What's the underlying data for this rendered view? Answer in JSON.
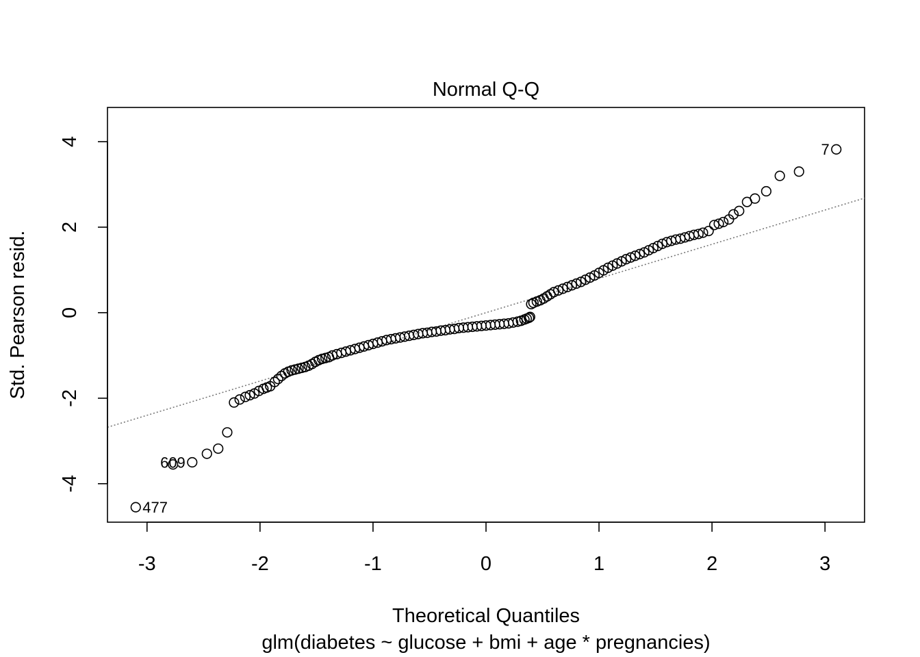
{
  "chart_data": {
    "type": "scatter",
    "title": "Normal Q-Q",
    "xlabel": "Theoretical Quantiles",
    "subtitle": "glm(diabetes ~ glucose + bmi + age * pregnancies)",
    "ylabel": "Std. Pearson resid.",
    "xlim": [
      -3.35,
      3.35
    ],
    "ylim": [
      -4.9,
      4.8
    ],
    "xticks": [
      -3,
      -2,
      -1,
      0,
      1,
      2,
      3
    ],
    "yticks": [
      -4,
      -2,
      0,
      2,
      4
    ],
    "grid": false,
    "reference_line": {
      "slope": 0.8,
      "intercept": 0.0,
      "style": "dotted",
      "color": "#777777"
    },
    "point_labels": [
      {
        "text": "477",
        "x": -3.1,
        "y": -4.55,
        "side": "right"
      },
      {
        "text": "609",
        "x": -2.6,
        "y": -3.5,
        "side": "left"
      },
      {
        "text": "7",
        "x": 3.1,
        "y": 3.82,
        "side": "left"
      }
    ],
    "series": [
      {
        "marker": "open-circle",
        "points": [
          [
            -3.1,
            -4.55
          ],
          [
            -2.77,
            -3.55
          ],
          [
            -2.6,
            -3.5
          ],
          [
            -2.47,
            -3.3
          ],
          [
            -2.37,
            -3.18
          ],
          [
            -2.29,
            -2.8
          ],
          [
            -2.23,
            -2.1
          ],
          [
            -2.18,
            -2.03
          ],
          [
            -2.13,
            -1.97
          ],
          [
            -2.09,
            -1.93
          ],
          [
            -2.05,
            -1.89
          ],
          [
            -2.01,
            -1.83
          ],
          [
            -1.97,
            -1.78
          ],
          [
            -1.94,
            -1.75
          ],
          [
            -1.91,
            -1.72
          ],
          [
            -1.87,
            -1.62
          ],
          [
            -1.84,
            -1.55
          ],
          [
            -1.81,
            -1.48
          ],
          [
            -1.78,
            -1.42
          ],
          [
            -1.75,
            -1.38
          ],
          [
            -1.72,
            -1.35
          ],
          [
            -1.69,
            -1.33
          ],
          [
            -1.66,
            -1.31
          ],
          [
            -1.63,
            -1.29
          ],
          [
            -1.6,
            -1.27
          ],
          [
            -1.57,
            -1.24
          ],
          [
            -1.54,
            -1.2
          ],
          [
            -1.51,
            -1.15
          ],
          [
            -1.48,
            -1.11
          ],
          [
            -1.45,
            -1.08
          ],
          [
            -1.42,
            -1.06
          ],
          [
            -1.39,
            -1.04
          ],
          [
            -1.36,
            -1.0
          ],
          [
            -1.32,
            -0.97
          ],
          [
            -1.28,
            -0.94
          ],
          [
            -1.24,
            -0.91
          ],
          [
            -1.2,
            -0.88
          ],
          [
            -1.16,
            -0.85
          ],
          [
            -1.12,
            -0.82
          ],
          [
            -1.08,
            -0.79
          ],
          [
            -1.04,
            -0.76
          ],
          [
            -1.0,
            -0.73
          ],
          [
            -0.96,
            -0.7
          ],
          [
            -0.92,
            -0.67
          ],
          [
            -0.88,
            -0.64
          ],
          [
            -0.84,
            -0.62
          ],
          [
            -0.8,
            -0.6
          ],
          [
            -0.76,
            -0.58
          ],
          [
            -0.72,
            -0.56
          ],
          [
            -0.68,
            -0.54
          ],
          [
            -0.64,
            -0.52
          ],
          [
            -0.6,
            -0.5
          ],
          [
            -0.56,
            -0.48
          ],
          [
            -0.52,
            -0.47
          ],
          [
            -0.48,
            -0.45
          ],
          [
            -0.44,
            -0.44
          ],
          [
            -0.4,
            -0.42
          ],
          [
            -0.36,
            -0.41
          ],
          [
            -0.32,
            -0.39
          ],
          [
            -0.28,
            -0.38
          ],
          [
            -0.24,
            -0.36
          ],
          [
            -0.2,
            -0.35
          ],
          [
            -0.16,
            -0.34
          ],
          [
            -0.12,
            -0.33
          ],
          [
            -0.08,
            -0.32
          ],
          [
            -0.04,
            -0.31
          ],
          [
            0.0,
            -0.3
          ],
          [
            0.04,
            -0.29
          ],
          [
            0.08,
            -0.28
          ],
          [
            0.12,
            -0.27
          ],
          [
            0.16,
            -0.26
          ],
          [
            0.2,
            -0.25
          ],
          [
            0.24,
            -0.23
          ],
          [
            0.28,
            -0.21
          ],
          [
            0.31,
            -0.19
          ],
          [
            0.34,
            -0.16
          ],
          [
            0.36,
            -0.14
          ],
          [
            0.38,
            -0.12
          ],
          [
            0.39,
            -0.1
          ],
          [
            0.4,
            0.2
          ],
          [
            0.42,
            0.23
          ],
          [
            0.45,
            0.26
          ],
          [
            0.48,
            0.29
          ],
          [
            0.51,
            0.33
          ],
          [
            0.54,
            0.38
          ],
          [
            0.57,
            0.43
          ],
          [
            0.6,
            0.48
          ],
          [
            0.64,
            0.52
          ],
          [
            0.68,
            0.56
          ],
          [
            0.72,
            0.6
          ],
          [
            0.76,
            0.64
          ],
          [
            0.8,
            0.68
          ],
          [
            0.84,
            0.72
          ],
          [
            0.88,
            0.77
          ],
          [
            0.92,
            0.82
          ],
          [
            0.96,
            0.87
          ],
          [
            1.0,
            0.93
          ],
          [
            1.04,
            0.99
          ],
          [
            1.08,
            1.05
          ],
          [
            1.12,
            1.1
          ],
          [
            1.16,
            1.15
          ],
          [
            1.2,
            1.2
          ],
          [
            1.24,
            1.25
          ],
          [
            1.28,
            1.29
          ],
          [
            1.32,
            1.33
          ],
          [
            1.36,
            1.37
          ],
          [
            1.4,
            1.41
          ],
          [
            1.44,
            1.46
          ],
          [
            1.48,
            1.51
          ],
          [
            1.52,
            1.56
          ],
          [
            1.56,
            1.61
          ],
          [
            1.6,
            1.65
          ],
          [
            1.64,
            1.68
          ],
          [
            1.68,
            1.71
          ],
          [
            1.72,
            1.73
          ],
          [
            1.76,
            1.76
          ],
          [
            1.8,
            1.79
          ],
          [
            1.84,
            1.82
          ],
          [
            1.88,
            1.84
          ],
          [
            1.92,
            1.87
          ],
          [
            1.97,
            1.91
          ],
          [
            2.02,
            2.05
          ],
          [
            2.06,
            2.08
          ],
          [
            2.1,
            2.12
          ],
          [
            2.15,
            2.18
          ],
          [
            2.19,
            2.3
          ],
          [
            2.24,
            2.38
          ],
          [
            2.31,
            2.59
          ],
          [
            2.38,
            2.67
          ],
          [
            2.48,
            2.84
          ],
          [
            2.6,
            3.2
          ],
          [
            2.77,
            3.3
          ],
          [
            3.1,
            3.82
          ]
        ]
      }
    ]
  }
}
